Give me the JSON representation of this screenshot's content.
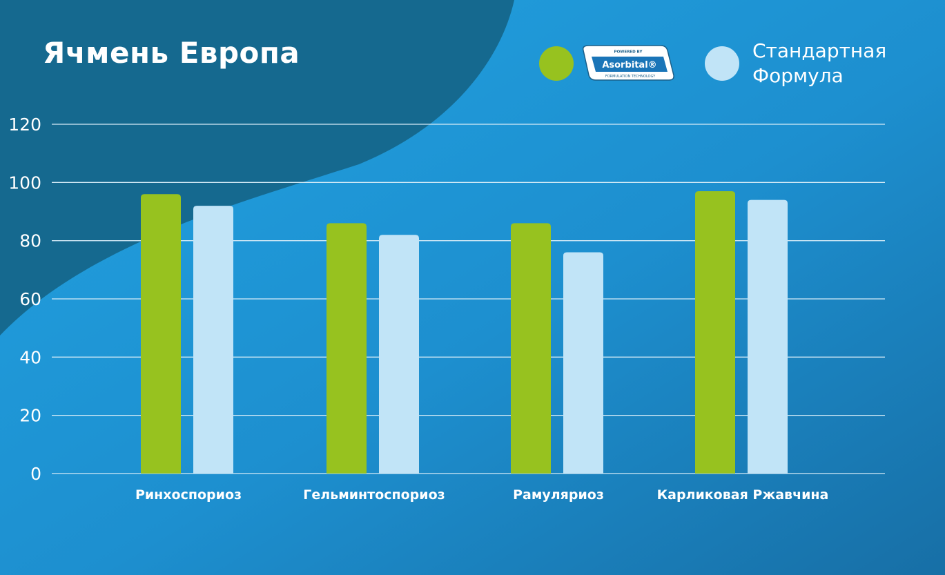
{
  "colors": {
    "bg_main": "#1e98d6",
    "bg_dark": "#15698f",
    "series_asorbital": "#97c21f",
    "series_standard": "#c1e4f7",
    "grid": "#d7ecf7",
    "text": "#ffffff"
  },
  "legend": {
    "badge": {
      "top_text": "POWERED BY",
      "brand": "Asorbital®",
      "bottom_text": "FORMULATION TECHNOLOGY"
    },
    "standard_line1": "Стандартная",
    "standard_line2": "Формула"
  },
  "chart_data": {
    "type": "bar",
    "title": "Ячмень Европа",
    "categories": [
      "Ринхоспориоз",
      "Гельминтоспориоз",
      "Рамуляриоз",
      "Карликовая Ржавчина"
    ],
    "series": [
      {
        "values": [
          96,
          86,
          86,
          97
        ],
        "color": "#97c21f"
      },
      {
        "name": "Стандартная Формула",
        "values": [
          92,
          82,
          76,
          94
        ],
        "color": "#c1e4f7"
      }
    ],
    "ylim": [
      0,
      120
    ],
    "yticks": [
      0,
      20,
      40,
      60,
      80,
      100,
      120
    ],
    "grid": true,
    "legend_position": "top-right"
  }
}
